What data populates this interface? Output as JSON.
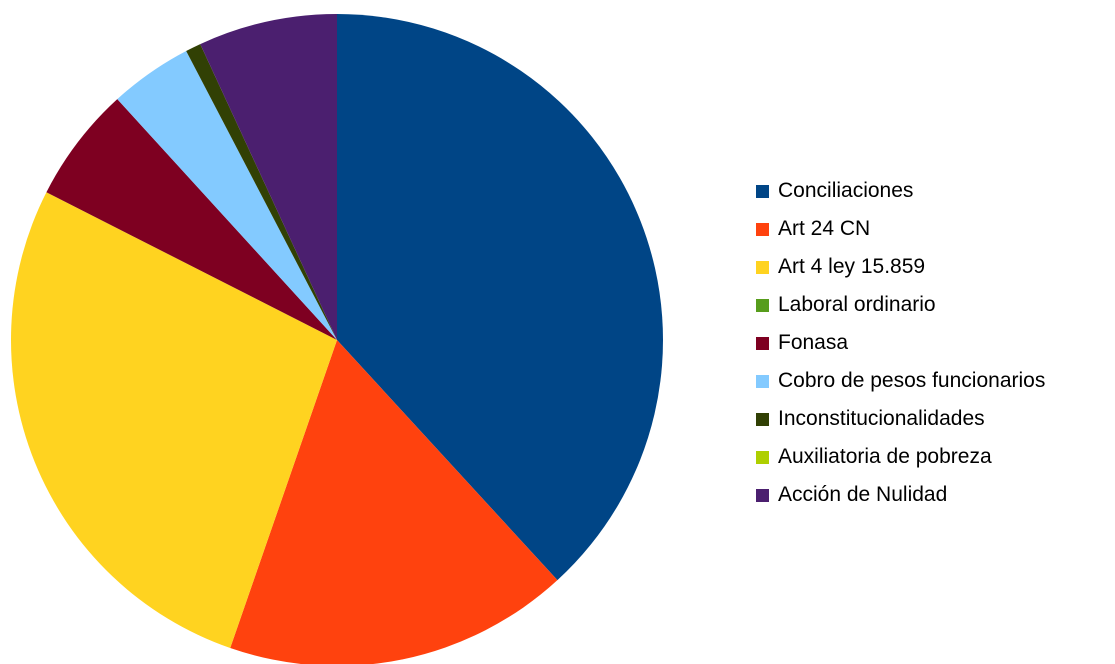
{
  "chart_data": {
    "type": "pie",
    "start_angle_deg": 0,
    "direction": "clockwise",
    "legend_position": "right",
    "series": [
      {
        "name": "Conciliaciones",
        "value": 39.9,
        "color": "#004586"
      },
      {
        "name": "Art 24 CN",
        "value": 17.9,
        "color": "#FF420E"
      },
      {
        "name": "Art 4 ley 15.859",
        "value": 28.4,
        "color": "#FFD320"
      },
      {
        "name": "Laboral ordinario",
        "value": 0.0,
        "color": "#579D1C"
      },
      {
        "name": "Fonasa",
        "value": 6.0,
        "color": "#7E0021"
      },
      {
        "name": "Cobro de pesos funcionarios",
        "value": 4.3,
        "color": "#83CAFF"
      },
      {
        "name": "Inconstitucionalidades",
        "value": 0.8,
        "color": "#314004"
      },
      {
        "name": "Auxiliatoria de pobreza",
        "value": 0.0,
        "color": "#AECF00"
      },
      {
        "name": "Acción de Nulidad",
        "value": 7.2,
        "color": "#4B1F6F"
      }
    ]
  }
}
